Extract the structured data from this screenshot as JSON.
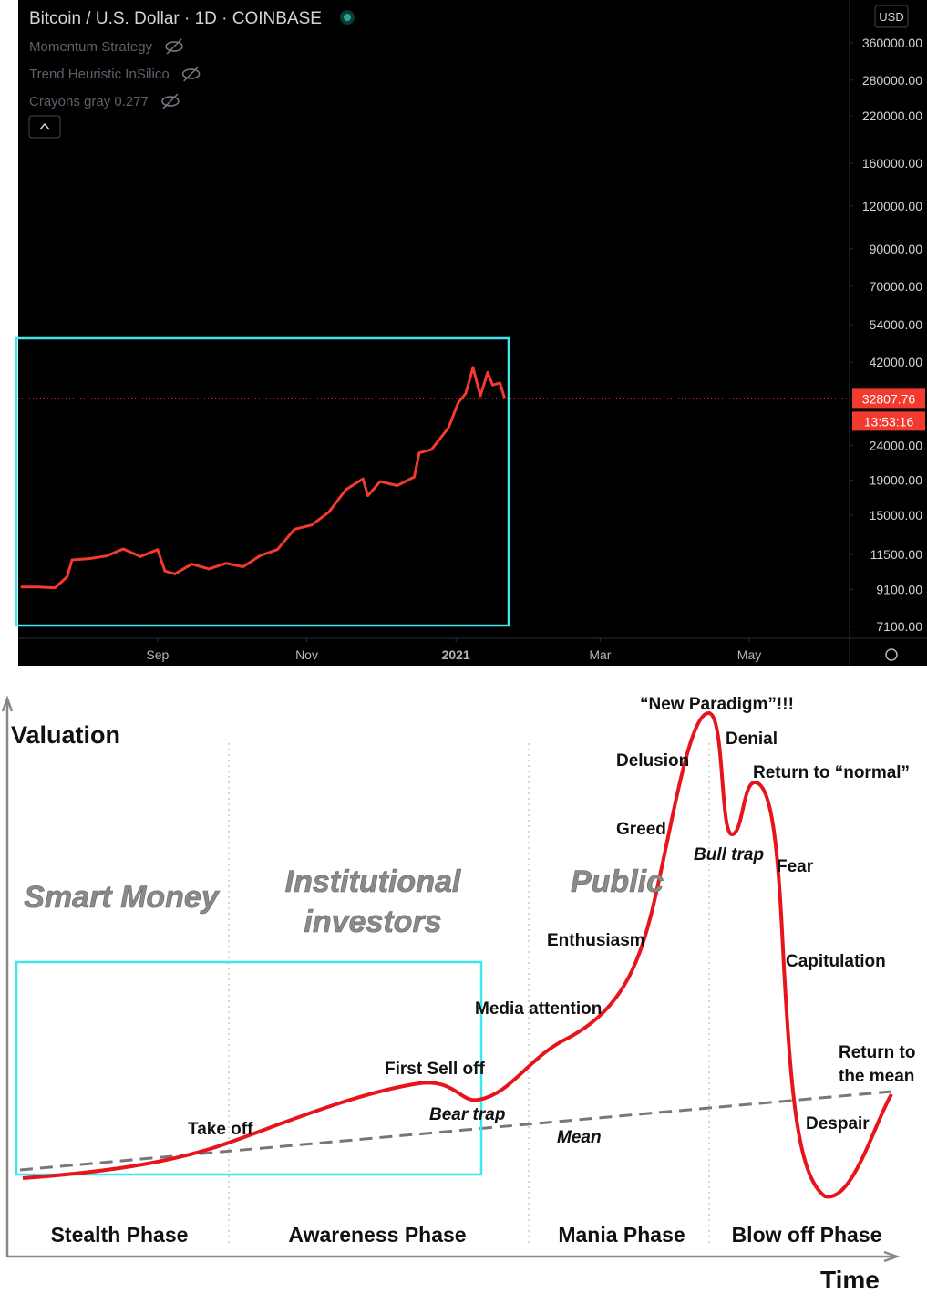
{
  "chart_data": {
    "type": "line",
    "title": "Bitcoin / U.S. Dollar · 1D · COINBASE",
    "indicators": [
      "Momentum Strategy",
      "Trend Heuristic InSilico",
      "Crayons gray 0.277"
    ],
    "currency": "USD",
    "x": [
      "2020-07-07",
      "2020-07-14",
      "2020-07-21",
      "2020-07-26",
      "2020-07-28",
      "2020-08-04",
      "2020-08-11",
      "2020-08-18",
      "2020-08-25",
      "2020-09-01",
      "2020-09-04",
      "2020-09-08",
      "2020-09-15",
      "2020-09-22",
      "2020-09-29",
      "2020-10-06",
      "2020-10-13",
      "2020-10-20",
      "2020-10-27",
      "2020-11-03",
      "2020-11-10",
      "2020-11-17",
      "2020-11-24",
      "2020-11-26",
      "2020-12-01",
      "2020-12-08",
      "2020-12-15",
      "2020-12-17",
      "2020-12-22",
      "2020-12-29",
      "2021-01-02",
      "2021-01-05",
      "2021-01-08",
      "2021-01-11",
      "2021-01-14",
      "2021-01-16",
      "2021-01-19",
      "2021-01-21"
    ],
    "series": [
      {
        "name": "BTCUSD",
        "color": "#f23a2f",
        "values": [
          9250,
          9250,
          9200,
          9900,
          11100,
          11200,
          11400,
          11950,
          11350,
          11900,
          10300,
          10100,
          10790,
          10450,
          10850,
          10600,
          11430,
          11900,
          13650,
          14030,
          15300,
          17800,
          19150,
          17100,
          18800,
          18300,
          19400,
          22800,
          23300,
          27000,
          32000,
          34000,
          40500,
          33500,
          39200,
          36000,
          36500,
          32807.76
        ]
      }
    ],
    "last_price": 32807.76,
    "countdown": "13:53:16",
    "log_scale": true,
    "grid": false,
    "xlim": [
      "2020-07-06",
      "2021-06-11"
    ],
    "xticks": [
      {
        "value": "2020-09-01",
        "label": "Sep"
      },
      {
        "value": "2020-11-01",
        "label": "Nov"
      },
      {
        "value": "2021-01-01",
        "label": "2021"
      },
      {
        "value": "2021-03-01",
        "label": "Mar"
      },
      {
        "value": "2021-05-01",
        "label": "May"
      }
    ],
    "ylim": [
      6550,
      480000
    ],
    "yticks": [
      {
        "value": 360000,
        "label": "360000.00"
      },
      {
        "value": 280000,
        "label": "280000.00"
      },
      {
        "value": 220000,
        "label": "220000.00"
      },
      {
        "value": 160000,
        "label": "160000.00"
      },
      {
        "value": 120000,
        "label": "120000.00"
      },
      {
        "value": 90000,
        "label": "90000.00"
      },
      {
        "value": 70000,
        "label": "70000.00"
      },
      {
        "value": 54000,
        "label": "54000.00"
      },
      {
        "value": 42000,
        "label": "42000.00"
      },
      {
        "value": 24000,
        "label": "24000.00"
      },
      {
        "value": 19000,
        "label": "19000.00"
      },
      {
        "value": 15000,
        "label": "15000.00"
      },
      {
        "value": 11500,
        "label": "11500.00"
      },
      {
        "value": 9100,
        "label": "9100.00"
      },
      {
        "value": 7100,
        "label": "7100.00"
      }
    ]
  },
  "diagram": {
    "y_label": "Valuation",
    "x_label": "Time",
    "groups": [
      {
        "lines": [
          "Smart Money"
        ]
      },
      {
        "lines": [
          "Institutional",
          "investors"
        ]
      },
      {
        "lines": [
          "Public"
        ]
      }
    ],
    "phases": [
      "Stealth Phase",
      "Awareness Phase",
      "Mania Phase",
      "Blow off Phase"
    ],
    "annotations": [
      "“New Paradigm”!!!",
      "Denial",
      "Delusion",
      "Return to “normal”",
      "Greed",
      "Bull trap",
      "Fear",
      "Enthusiasm",
      "Capitulation",
      "Media attention",
      "First Sell off",
      "Bear trap",
      "Take off",
      "Mean",
      "Despair"
    ],
    "return_label": {
      "lines": [
        "Return to",
        "the mean"
      ]
    }
  }
}
